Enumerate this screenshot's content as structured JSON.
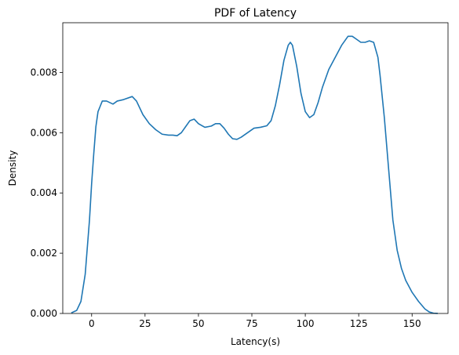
{
  "chart_data": {
    "type": "line",
    "title": "PDF of Latency",
    "xlabel": "Latency(s)",
    "ylabel": "Density",
    "xlim": [
      -13.5,
      166.8
    ],
    "ylim": [
      0,
      0.00965
    ],
    "x_ticks": [
      0,
      25,
      50,
      75,
      100,
      125,
      150
    ],
    "x_tick_labels": [
      "0",
      "25",
      "50",
      "75",
      "100",
      "125",
      "150"
    ],
    "y_ticks": [
      0,
      0.002,
      0.004,
      0.006,
      0.008
    ],
    "y_tick_labels": [
      "0.000",
      "0.002",
      "0.004",
      "0.006",
      "0.008"
    ],
    "grid": false,
    "colors": {
      "line": "#1f77b4"
    },
    "series": [
      {
        "x": [
          -9.5,
          -7,
          -5,
          -3,
          -1,
          0,
          1,
          2,
          3,
          5,
          7,
          10,
          12,
          15,
          19,
          21,
          24,
          27,
          30,
          33,
          36,
          38,
          40,
          42,
          44,
          46,
          48,
          50,
          53,
          56,
          58,
          60,
          62,
          64,
          66,
          68,
          70,
          73,
          76,
          79,
          82,
          84,
          86,
          88,
          90,
          92,
          93,
          94,
          96,
          98,
          100,
          102,
          104,
          106,
          108,
          111,
          114,
          117,
          120,
          122,
          124,
          126,
          128,
          130,
          132,
          134,
          135,
          137,
          139,
          141,
          143,
          145,
          147,
          150,
          153,
          156,
          158,
          160,
          162
        ],
        "y": [
          2e-05,
          0.0001,
          0.0004,
          0.0013,
          0.0031,
          0.0043,
          0.0053,
          0.0062,
          0.0067,
          0.00705,
          0.00705,
          0.00695,
          0.00705,
          0.0071,
          0.0072,
          0.00705,
          0.0066,
          0.0063,
          0.0061,
          0.00595,
          0.00592,
          0.00592,
          0.0059,
          0.006,
          0.0062,
          0.0064,
          0.00645,
          0.0063,
          0.00618,
          0.00622,
          0.0063,
          0.0063,
          0.00615,
          0.00595,
          0.0058,
          0.00578,
          0.00585,
          0.006,
          0.00615,
          0.00618,
          0.00623,
          0.0064,
          0.0069,
          0.0076,
          0.0084,
          0.0089,
          0.009,
          0.0089,
          0.0082,
          0.0073,
          0.0067,
          0.0065,
          0.0066,
          0.007,
          0.0075,
          0.0081,
          0.0085,
          0.0089,
          0.0092,
          0.0092,
          0.0091,
          0.009,
          0.009,
          0.00905,
          0.009,
          0.0085,
          0.0079,
          0.0065,
          0.0048,
          0.0031,
          0.0021,
          0.0015,
          0.0011,
          0.0007,
          0.0004,
          0.00015,
          5e-05,
          1e-05,
          2e-06
        ]
      }
    ]
  }
}
